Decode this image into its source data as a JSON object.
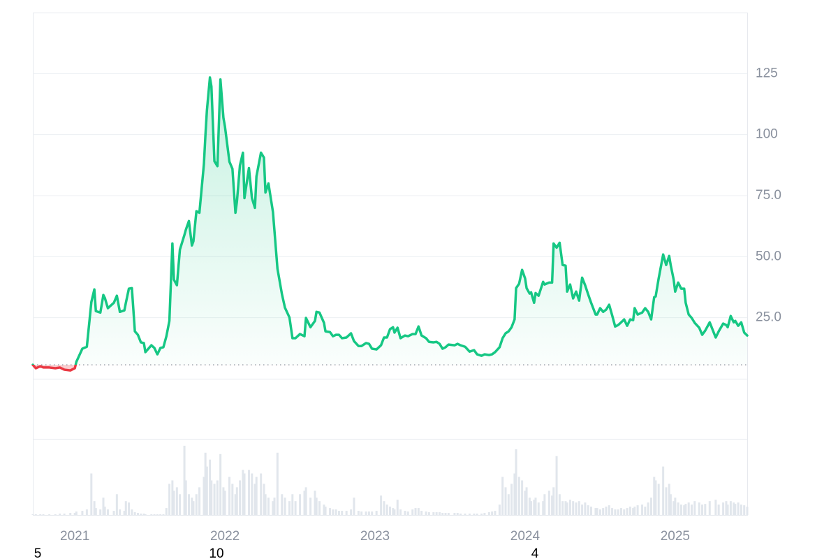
{
  "chart_data": {
    "type": "line",
    "x": [
      2020.72,
      2020.74,
      2020.77,
      2020.79,
      2020.83,
      2020.87,
      2020.9,
      2020.93,
      2020.97,
      2021.0,
      2021.01,
      2021.05,
      2021.08,
      2021.11,
      2021.13,
      2021.14,
      2021.17,
      2021.19,
      2021.2,
      2021.22,
      2021.26,
      2021.28,
      2021.3,
      2021.33,
      2021.34,
      2021.36,
      2021.38,
      2021.4,
      2021.42,
      2021.44,
      2021.46,
      2021.47,
      2021.51,
      2021.53,
      2021.55,
      2021.57,
      2021.59,
      2021.61,
      2021.63,
      2021.65,
      2021.66,
      2021.68,
      2021.7,
      2021.73,
      2021.74,
      2021.76,
      2021.78,
      2021.79,
      2021.81,
      2021.83,
      2021.86,
      2021.87,
      2021.88,
      2021.9,
      2021.91,
      2021.93,
      2021.95,
      2021.97,
      2021.99,
      2022.0,
      2022.03,
      2022.05,
      2022.07,
      2022.08,
      2022.1,
      2022.12,
      2022.13,
      2022.16,
      2022.18,
      2022.2,
      2022.21,
      2022.24,
      2022.26,
      2022.27,
      2022.29,
      2022.32,
      2022.33,
      2022.35,
      2022.38,
      2022.4,
      2022.43,
      2022.45,
      2022.47,
      2022.5,
      2022.53,
      2022.54,
      2022.57,
      2022.6,
      2022.61,
      2022.63,
      2022.66,
      2022.67,
      2022.7,
      2022.72,
      2022.74,
      2022.76,
      2022.78,
      2022.81,
      2022.84,
      2022.86,
      2022.89,
      2022.91,
      2022.94,
      2022.96,
      2022.98,
      2023.01,
      2023.04,
      2023.06,
      2023.08,
      2023.1,
      2023.12,
      2023.13,
      2023.15,
      2023.17,
      2023.2,
      2023.22,
      2023.25,
      2023.27,
      2023.29,
      2023.31,
      2023.34,
      2023.36,
      2023.39,
      2023.41,
      2023.43,
      2023.45,
      2023.47,
      2023.49,
      2023.53,
      2023.55,
      2023.57,
      2023.6,
      2023.63,
      2023.66,
      2023.68,
      2023.71,
      2023.73,
      2023.76,
      2023.78,
      2023.8,
      2023.83,
      2023.85,
      2023.87,
      2023.89,
      2023.91,
      2023.93,
      2023.94,
      2023.96,
      2023.98,
      2024.0,
      2024.01,
      2024.03,
      2024.04,
      2024.06,
      2024.07,
      2024.09,
      2024.12,
      2024.13,
      2024.16,
      2024.18,
      2024.19,
      2024.21,
      2024.23,
      2024.25,
      2024.27,
      2024.28,
      2024.3,
      2024.32,
      2024.34,
      2024.36,
      2024.38,
      2024.4,
      2024.42,
      2024.44,
      2024.47,
      2024.48,
      2024.5,
      2024.52,
      2024.54,
      2024.56,
      2024.58,
      2024.6,
      2024.62,
      2024.64,
      2024.66,
      2024.68,
      2024.7,
      2024.72,
      2024.73,
      2024.75,
      2024.78,
      2024.8,
      2024.82,
      2024.84,
      2024.86,
      2024.87,
      2024.89,
      2024.92,
      2024.94,
      2024.96,
      2024.97,
      2024.99,
      2025.0,
      2025.02,
      2025.04,
      2025.06,
      2025.07,
      2025.09,
      2025.11,
      2025.13,
      2025.16,
      2025.18,
      2025.2,
      2025.23,
      2025.27,
      2025.29,
      2025.32,
      2025.34,
      2025.35,
      2025.37,
      2025.39,
      2025.4,
      2025.42,
      2025.44,
      2025.46,
      2025.48
    ],
    "values": [
      5.7,
      4.3,
      5.1,
      4.6,
      4.6,
      4.3,
      4.6,
      3.7,
      3.4,
      4.3,
      6.9,
      12.3,
      13.1,
      31.4,
      36.6,
      27.7,
      27.1,
      34.3,
      33.1,
      28.9,
      31.1,
      34,
      27.4,
      28,
      31.1,
      36.9,
      37.1,
      19.4,
      18,
      14.9,
      14.6,
      10.9,
      13.7,
      12.6,
      10,
      12.6,
      12.9,
      17.4,
      23.7,
      55.4,
      40.6,
      38.3,
      52.9,
      58.9,
      61.1,
      64.6,
      54.6,
      56.3,
      68.6,
      68,
      88,
      99.7,
      110,
      123.4,
      119.7,
      89.1,
      87.1,
      122.6,
      106.9,
      103.4,
      88.9,
      86,
      68,
      72.6,
      87.4,
      92.6,
      74,
      86.3,
      74,
      70,
      82.9,
      92.6,
      90.6,
      76.3,
      80,
      68.3,
      60.6,
      45.1,
      34.6,
      29.1,
      25.1,
      16.6,
      16.6,
      18.3,
      17.4,
      24.9,
      21.1,
      23.7,
      27.4,
      27.1,
      22.9,
      19.4,
      19.1,
      17.4,
      18,
      18,
      16.6,
      16.9,
      18.6,
      15.4,
      13.4,
      13.4,
      14.6,
      14.3,
      12.3,
      12,
      13.7,
      16.9,
      16.9,
      20.3,
      21.1,
      18.9,
      20.9,
      16.6,
      17.7,
      17.4,
      18.3,
      18.3,
      21.4,
      17.7,
      16.6,
      15.1,
      14.9,
      15.1,
      14.3,
      12.3,
      12.9,
      14,
      13.7,
      14.3,
      13.7,
      13.1,
      11.1,
      11.7,
      10,
      9.4,
      10,
      9.7,
      10,
      10.9,
      12.9,
      16.6,
      18.6,
      19.4,
      21.1,
      24.3,
      37.1,
      38.9,
      44.6,
      41.1,
      37.1,
      34.9,
      35.4,
      31.1,
      35.1,
      34,
      39.7,
      38.6,
      39.4,
      39.4,
      55.4,
      53.7,
      55.7,
      46.6,
      46.3,
      35.7,
      38.6,
      32.9,
      35.7,
      32,
      41.4,
      38.3,
      34.6,
      31.1,
      26.3,
      26.3,
      28.9,
      27.4,
      28.3,
      30.3,
      26,
      21.4,
      22,
      23.1,
      24.3,
      21.7,
      24.3,
      24,
      28.9,
      26.3,
      27.1,
      28.9,
      27.4,
      24.3,
      33.4,
      33.7,
      41.1,
      50.9,
      46.6,
      50.3,
      46.6,
      40.6,
      35.7,
      39.4,
      36.9,
      36.9,
      31.1,
      26.3,
      24.9,
      22.9,
      20.9,
      18,
      19.7,
      23.1,
      16.9,
      19.4,
      22.6,
      22,
      21.1,
      25.7,
      23.1,
      23.7,
      21.7,
      23.1,
      18.9,
      17.7
    ],
    "volume": [
      1,
      1,
      1,
      1,
      1,
      1,
      2,
      2,
      3,
      3,
      5,
      6,
      8,
      60,
      20,
      10,
      8,
      25,
      12,
      8,
      6,
      30,
      8,
      6,
      20,
      18,
      8,
      4,
      3,
      2,
      2,
      1,
      1,
      1,
      1,
      1,
      1,
      10,
      45,
      50,
      35,
      40,
      30,
      100,
      50,
      30,
      25,
      20,
      30,
      40,
      55,
      90,
      70,
      80,
      50,
      45,
      50,
      88,
      40,
      35,
      55,
      45,
      30,
      40,
      50,
      65,
      60,
      65,
      60,
      45,
      55,
      60,
      45,
      30,
      25,
      20,
      25,
      90,
      30,
      25,
      20,
      30,
      20,
      30,
      35,
      40,
      25,
      35,
      25,
      20,
      15,
      12,
      10,
      8,
      8,
      6,
      6,
      6,
      8,
      25,
      6,
      5,
      5,
      5,
      5,
      6,
      28,
      20,
      15,
      12,
      10,
      8,
      22,
      8,
      6,
      5,
      8,
      10,
      10,
      6,
      5,
      4,
      4,
      4,
      4,
      3,
      3,
      3,
      3,
      3,
      2,
      2,
      2,
      2,
      2,
      2,
      3,
      4,
      5,
      6,
      15,
      55,
      40,
      30,
      45,
      60,
      95,
      55,
      50,
      35,
      40,
      25,
      20,
      22,
      25,
      18,
      20,
      30,
      35,
      28,
      40,
      85,
      30,
      20,
      20,
      18,
      22,
      20,
      18,
      20,
      15,
      18,
      14,
      12,
      10,
      10,
      8,
      10,
      12,
      14,
      10,
      8,
      8,
      10,
      8,
      10,
      12,
      10,
      12,
      14,
      15,
      12,
      18,
      25,
      55,
      50,
      45,
      70,
      40,
      45,
      30,
      20,
      25,
      18,
      15,
      14,
      16,
      18,
      15,
      20,
      18,
      15,
      16,
      20,
      22,
      15,
      18,
      20,
      15,
      20,
      18,
      16,
      18,
      15,
      14,
      12
    ],
    "baseline": 5.7,
    "color_up": "#16c784",
    "color_down": "#ea3943",
    "volume_color": "#e1e6ec",
    "xlim": [
      2020.72,
      2025.48
    ],
    "xticks": [
      2021,
      2022,
      2023,
      2024,
      2025
    ],
    "ylim": [
      0,
      150
    ],
    "yticks": [
      {
        "value": 25,
        "label": "25.0"
      },
      {
        "value": 50,
        "label": "50.0"
      },
      {
        "value": 75,
        "label": "75.0"
      },
      100,
      125
    ],
    "volume_lim": [
      0,
      110
    ],
    "grid": true,
    "footer_labels": [
      "5",
      "10",
      "4"
    ]
  }
}
